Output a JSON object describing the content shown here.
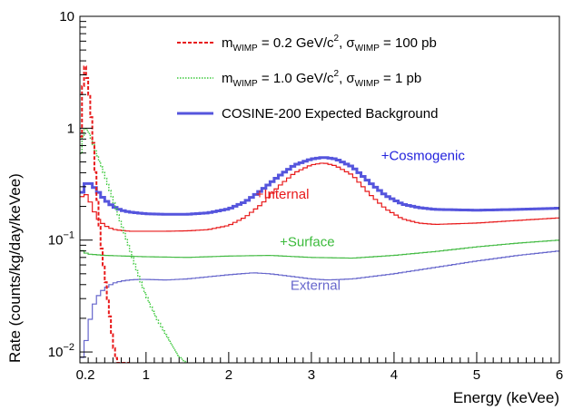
{
  "chart_data": {
    "type": "line",
    "title": "",
    "xlabel": "Energy (keVee)",
    "ylabel": "Rate (counts/kg/day/keVee)",
    "xlim": [
      0.2,
      6
    ],
    "ylim": [
      0.008,
      10
    ],
    "y_scale": "log",
    "grid": false,
    "legend_position": "top-right",
    "x_ticks": [
      {
        "value": 0.2,
        "label": "0.2"
      },
      {
        "value": 1,
        "label": "1"
      },
      {
        "value": 2,
        "label": "2"
      },
      {
        "value": 3,
        "label": "3"
      },
      {
        "value": 4,
        "label": "4"
      },
      {
        "value": 5,
        "label": "5"
      },
      {
        "value": 6,
        "label": "6"
      }
    ],
    "y_ticks": [
      {
        "value": 0.01,
        "base": "10",
        "exp": "−2"
      },
      {
        "value": 0.1,
        "base": "10",
        "exp": "−1"
      },
      {
        "value": 1,
        "base": "1",
        "exp": ""
      },
      {
        "value": 10,
        "base": "10",
        "exp": ""
      }
    ],
    "legend": [
      {
        "series": "wimp02",
        "parts": [
          {
            "t": "m"
          },
          {
            "t": "WIMP",
            "sub": true
          },
          {
            "t": " = 0.2 GeV/c"
          },
          {
            "t": "2",
            "sup": true
          },
          {
            "t": ", σ"
          },
          {
            "t": "WIMP",
            "sub": true
          },
          {
            "t": " = 100 pb"
          }
        ]
      },
      {
        "series": "wimp10",
        "parts": [
          {
            "t": "m"
          },
          {
            "t": "WIMP",
            "sub": true
          },
          {
            "t": " = 1.0 GeV/c"
          },
          {
            "t": "2",
            "sup": true
          },
          {
            "t": ", σ"
          },
          {
            "t": "WIMP",
            "sub": true
          },
          {
            "t": " = 1 pb"
          }
        ]
      },
      {
        "series": "total",
        "parts": [
          {
            "t": "COSINE-200 Expected Background"
          }
        ]
      }
    ],
    "series": [
      {
        "id": "wimp02",
        "color": "#e8191a",
        "style": "dashed",
        "x": [
          0.2,
          0.25,
          0.3,
          0.35,
          0.4,
          0.45,
          0.5,
          0.55,
          0.6,
          0.65,
          0.7,
          0.75,
          0.8
        ],
        "y": [
          0.5,
          4.0,
          2.5,
          1.0,
          0.3,
          0.1,
          0.05,
          0.025,
          0.012,
          0.008,
          0.008,
          0.008,
          0.008
        ]
      },
      {
        "id": "wimp10",
        "color": "#3cc83c",
        "style": "dotted",
        "x": [
          0.2,
          0.25,
          0.3,
          0.4,
          0.5,
          0.6,
          0.7,
          0.8,
          0.9,
          1.0,
          1.1,
          1.2,
          1.3,
          1.4,
          1.5
        ],
        "y": [
          0.5,
          1.0,
          0.95,
          0.6,
          0.38,
          0.23,
          0.14,
          0.085,
          0.05,
          0.032,
          0.022,
          0.016,
          0.012,
          0.009,
          0.008
        ]
      },
      {
        "id": "external",
        "color": "#6666cc",
        "style": "step",
        "annotation": "External",
        "x": [
          0.2,
          0.25,
          0.3,
          0.35,
          0.4,
          0.45,
          0.5,
          0.6,
          0.7,
          0.8,
          0.9,
          1.0,
          1.25,
          1.5,
          2.0,
          2.3,
          2.5,
          2.8,
          3.0,
          3.2,
          3.5,
          4.0,
          4.5,
          5.0,
          5.5,
          6.0
        ],
        "y": [
          0.008,
          0.01,
          0.016,
          0.024,
          0.03,
          0.034,
          0.037,
          0.041,
          0.043,
          0.044,
          0.0445,
          0.0445,
          0.044,
          0.045,
          0.049,
          0.051,
          0.05,
          0.047,
          0.045,
          0.044,
          0.045,
          0.05,
          0.057,
          0.065,
          0.073,
          0.08
        ]
      },
      {
        "id": "surface",
        "color": "#44bb44",
        "style": "step",
        "annotation": "+Surface",
        "x": [
          0.2,
          0.25,
          0.3,
          0.4,
          0.5,
          0.75,
          1.0,
          1.5,
          2.0,
          2.5,
          3.0,
          3.5,
          4.0,
          4.5,
          5.0,
          5.5,
          6.0
        ],
        "y": [
          0.083,
          0.078,
          0.075,
          0.074,
          0.073,
          0.072,
          0.071,
          0.07,
          0.072,
          0.073,
          0.07,
          0.069,
          0.073,
          0.079,
          0.087,
          0.094,
          0.1
        ]
      },
      {
        "id": "internal",
        "color": "#e8191a",
        "style": "step",
        "annotation": "+Internal",
        "x": [
          0.2,
          0.22,
          0.25,
          0.3,
          0.35,
          0.4,
          0.5,
          0.6,
          0.7,
          0.8,
          0.9,
          1.0,
          1.25,
          1.5,
          1.75,
          2.0,
          2.2,
          2.4,
          2.6,
          2.8,
          3.0,
          3.15,
          3.3,
          3.5,
          3.7,
          3.9,
          4.1,
          4.3,
          4.5,
          5.0,
          5.5,
          6.0
        ],
        "y": [
          0.2,
          0.24,
          0.27,
          0.24,
          0.2,
          0.16,
          0.135,
          0.125,
          0.122,
          0.12,
          0.12,
          0.12,
          0.12,
          0.121,
          0.124,
          0.135,
          0.16,
          0.21,
          0.3,
          0.4,
          0.47,
          0.49,
          0.46,
          0.38,
          0.26,
          0.19,
          0.155,
          0.142,
          0.138,
          0.142,
          0.15,
          0.158
        ]
      },
      {
        "id": "total",
        "color": "#5555dd",
        "style": "step-thick",
        "annotation": "+Cosmogenic",
        "x": [
          0.2,
          0.22,
          0.25,
          0.3,
          0.35,
          0.4,
          0.5,
          0.6,
          0.7,
          0.8,
          0.9,
          1.0,
          1.25,
          1.5,
          1.75,
          2.0,
          2.2,
          2.4,
          2.6,
          2.8,
          3.0,
          3.15,
          3.3,
          3.5,
          3.7,
          3.9,
          4.1,
          4.3,
          4.5,
          5.0,
          5.5,
          6.0
        ],
        "y": [
          0.2,
          0.26,
          0.31,
          0.33,
          0.31,
          0.28,
          0.23,
          0.2,
          0.185,
          0.178,
          0.175,
          0.172,
          0.17,
          0.17,
          0.175,
          0.19,
          0.22,
          0.28,
          0.37,
          0.47,
          0.53,
          0.55,
          0.53,
          0.45,
          0.33,
          0.25,
          0.21,
          0.195,
          0.188,
          0.185,
          0.188,
          0.193
        ]
      }
    ],
    "annotations": [
      {
        "text": "+Cosmogenic",
        "x": 4.35,
        "y": 0.52,
        "color": "#2222dd"
      },
      {
        "text": "+Internal",
        "x": 2.65,
        "y": 0.235,
        "color": "#e8191a"
      },
      {
        "text": "+Surface",
        "x": 2.95,
        "y": 0.088,
        "color": "#3cbb3c"
      },
      {
        "text": "External",
        "x": 3.05,
        "y": 0.036,
        "color": "#6666cc"
      }
    ]
  }
}
